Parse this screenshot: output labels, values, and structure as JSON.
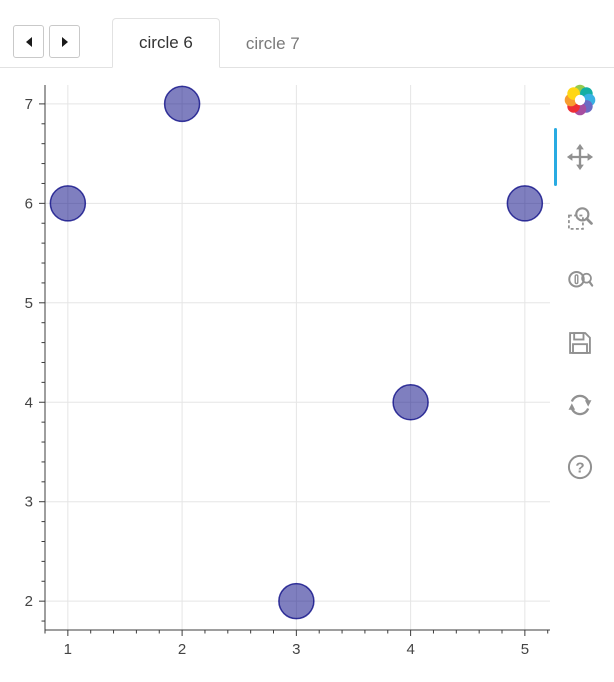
{
  "tabs": {
    "prev": "previous-tab",
    "next": "next-tab",
    "items": [
      {
        "label": "circle 6",
        "active": true
      },
      {
        "label": "circle 7",
        "active": false
      }
    ]
  },
  "toolbar": {
    "logo": "bokeh-logo",
    "active_tool": "pan",
    "active_indicator_color": "#29abe2",
    "tools": [
      {
        "icon": "pan-move-icon",
        "name": "pan",
        "active": true
      },
      {
        "icon": "box-zoom-icon",
        "name": "box-zoom",
        "active": false
      },
      {
        "icon": "wheel-zoom-icon",
        "name": "wheel-zoom",
        "active": false
      },
      {
        "icon": "save-icon",
        "name": "save",
        "active": false
      },
      {
        "icon": "reset-icon",
        "name": "reset",
        "active": false
      },
      {
        "icon": "help-icon",
        "name": "help",
        "active": false
      }
    ]
  },
  "chart_data": {
    "type": "scatter",
    "marker": "circle",
    "x": [
      1,
      2,
      3,
      4,
      5
    ],
    "y": [
      6,
      7,
      2,
      4,
      6
    ],
    "marker_size": 35,
    "fill_color": "#000080",
    "fill_alpha": 0.5,
    "line_color": "#000080",
    "line_alpha": 0.75,
    "xlim": [
      0.8,
      5.22
    ],
    "ylim": [
      1.71,
      7.19
    ],
    "x_ticks": [
      1,
      2,
      3,
      4,
      5
    ],
    "y_ticks": [
      2,
      3,
      4,
      5,
      6,
      7
    ],
    "minor_tick_step": 0.2,
    "grid": true,
    "grid_color": "#e5e5e5",
    "axis_color": "#3c3c3c",
    "title": "",
    "xlabel": "",
    "ylabel": "",
    "legend": "none"
  }
}
